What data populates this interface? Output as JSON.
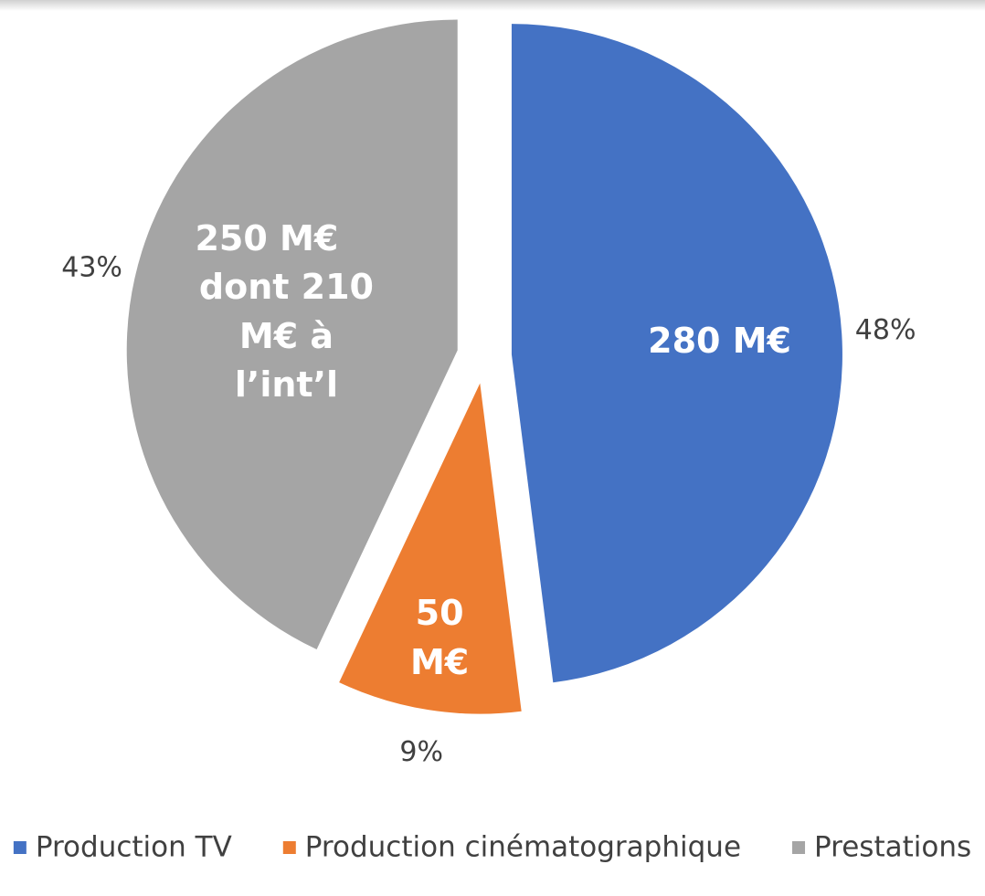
{
  "chart_data": {
    "type": "pie",
    "categories": [
      "Production TV",
      "Production cinématographique",
      "Prestations"
    ],
    "values": [
      48,
      9,
      43
    ],
    "value_labels": [
      "48%",
      "9%",
      "43%"
    ],
    "inner_labels": [
      "280 M€",
      "50 M€",
      "250 M€"
    ],
    "annotation": "dont 210 M€ à l’int’l",
    "colors": [
      "#4472c4",
      "#ed7d31",
      "#a5a5a5"
    ],
    "legend": "bottom"
  }
}
